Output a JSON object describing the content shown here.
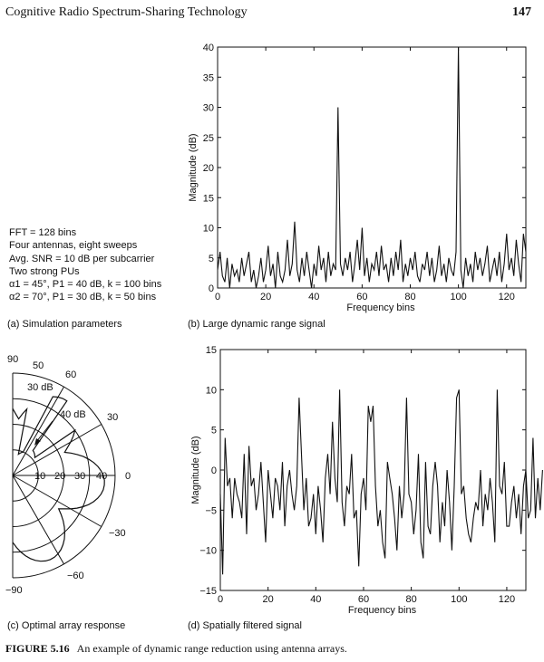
{
  "header": {
    "running_title": "Cognitive Radio Spectrum-Sharing Technology",
    "page_number": "147"
  },
  "params": {
    "lines": [
      "FFT = 128 bins",
      "Four antennas, eight sweeps",
      "Avg. SNR = 10 dB per subcarrier",
      "Two strong PUs",
      "α1 = 45°, P1 = 40 dB, k = 100 bins",
      "α2 = 70°, P1 = 30 dB, k = 50 bins"
    ]
  },
  "captions": {
    "a": "(a) Simulation parameters",
    "b": "(b) Large dynamic range signal",
    "c": "(c) Optimal array response",
    "d": "(d) Spatially filtered signal"
  },
  "figure": {
    "label": "FIGURE 5.16",
    "text": "An example of dynamic range reduction using antenna arrays."
  },
  "chart_data": [
    {
      "id": "b",
      "type": "line",
      "xlabel": "Frequency bins",
      "ylabel": "Magnitude (dB)",
      "xlim": [
        0,
        128
      ],
      "ylim": [
        0,
        40
      ],
      "xticks": [
        0,
        20,
        40,
        60,
        80,
        100,
        120
      ],
      "yticks": [
        0,
        5,
        10,
        15,
        20,
        25,
        30,
        35,
        40
      ],
      "values": [
        3,
        6,
        2,
        1,
        5,
        0,
        4,
        2,
        3,
        1,
        5,
        2,
        4,
        6,
        1,
        3,
        0,
        2,
        5,
        1,
        3,
        7,
        2,
        4,
        0,
        6,
        2,
        1,
        3,
        8,
        2,
        4,
        11,
        3,
        1,
        5,
        2,
        6,
        3,
        0,
        4,
        2,
        7,
        3,
        5,
        1,
        6,
        2,
        4,
        3,
        30,
        4,
        2,
        5,
        3,
        6,
        1,
        4,
        8,
        3,
        10,
        2,
        5,
        1,
        4,
        3,
        6,
        2,
        7,
        3,
        4,
        1,
        5,
        2,
        6,
        3,
        8,
        1,
        4,
        2,
        5,
        3,
        6,
        2,
        1,
        4,
        3,
        6,
        2,
        5,
        1,
        3,
        7,
        2,
        4,
        1,
        5,
        3,
        2,
        6,
        40,
        3,
        0,
        5,
        2,
        4,
        1,
        6,
        3,
        5,
        2,
        4,
        7,
        1,
        3,
        5,
        2,
        6,
        1,
        4,
        9,
        3,
        5,
        2,
        8,
        4,
        1,
        9,
        6
      ]
    },
    {
      "id": "d",
      "type": "line",
      "xlabel": "Frequency bins",
      "ylabel": "Magnitude (dB)",
      "xlim": [
        0,
        128
      ],
      "ylim": [
        -15,
        15
      ],
      "xticks": [
        0,
        20,
        40,
        60,
        80,
        100,
        120
      ],
      "yticks": [
        -15,
        -10,
        -5,
        0,
        5,
        10,
        15
      ],
      "values": [
        -3,
        -13,
        4,
        -2,
        -1,
        -6,
        -1,
        -3,
        -4,
        -6,
        2,
        -8,
        3,
        -2,
        -1,
        -5,
        -3,
        1,
        -4,
        -9,
        0,
        -3,
        -6,
        -1,
        -2,
        -5,
        1,
        -7,
        -2,
        0,
        -3,
        -5,
        -2,
        9,
        2,
        -5,
        -1,
        -7,
        -6,
        -3,
        -8,
        -2,
        -5,
        -9,
        -1,
        2,
        -3,
        6,
        -1,
        -4,
        10,
        -4,
        -7,
        -2,
        -3,
        2,
        -6,
        -5,
        -12,
        -3,
        -1,
        -5,
        8,
        6,
        8,
        -2,
        -7,
        -5,
        -9,
        -11,
        1,
        -1,
        -3,
        -6,
        -10,
        -2,
        -6,
        -3,
        9,
        -3,
        -4,
        -8,
        -5,
        2,
        -9,
        -11,
        1,
        -7,
        -8,
        -2,
        1,
        -2,
        -9,
        -4,
        -7,
        0,
        -4,
        -10,
        -2,
        9,
        10,
        -3,
        -2,
        -6,
        -8,
        -9,
        -6,
        -4,
        -5,
        0,
        -7,
        -3,
        -5,
        -1,
        -4,
        -9,
        10,
        -2,
        -3,
        1,
        -7,
        -7,
        -4,
        -2,
        -6,
        -3,
        -8,
        -2,
        0,
        -6,
        -5,
        4,
        -6,
        -1,
        -5,
        0
      ]
    },
    {
      "id": "c",
      "type": "polar",
      "theta_labels": [
        "90",
        "60",
        "30",
        "0",
        "−30",
        "−60",
        "−90",
        "50"
      ],
      "r_labels": [
        "10",
        "20",
        "30",
        "40"
      ],
      "annotations": [
        "30 dB",
        "40 dB"
      ]
    }
  ]
}
